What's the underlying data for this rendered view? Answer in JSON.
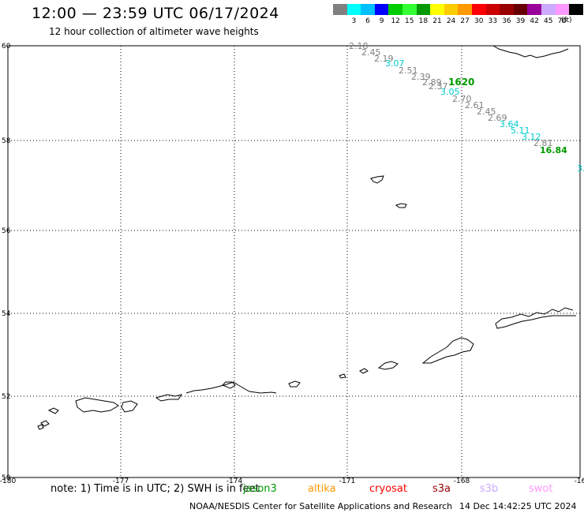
{
  "header": {
    "title": "12:00 — 23:59 UTC 06/17/2024",
    "subtitle": "12 hour collection of altimeter wave heights"
  },
  "legend": {
    "items": [
      {
        "label": "",
        "color": "#808080"
      },
      {
        "label": "3",
        "color": "#00ffff"
      },
      {
        "label": "6",
        "color": "#00bfff"
      },
      {
        "label": "9",
        "color": "#0000ff"
      },
      {
        "label": "12",
        "color": "#00cc00"
      },
      {
        "label": "15",
        "color": "#33ff33"
      },
      {
        "label": "18",
        "color": "#009900"
      },
      {
        "label": "21",
        "color": "#ffff00"
      },
      {
        "label": "24",
        "color": "#ffcc00"
      },
      {
        "label": "27",
        "color": "#ff9900"
      },
      {
        "label": "30",
        "color": "#ff0000"
      },
      {
        "label": "33",
        "color": "#cc0000"
      },
      {
        "label": "36",
        "color": "#990000"
      },
      {
        "label": "39",
        "color": "#660000"
      },
      {
        "label": "42",
        "color": "#990099"
      },
      {
        "label": "45",
        "color": "#ccaaff"
      },
      {
        "label": "70",
        "color": "#ff99ff"
      },
      {
        "label": "",
        "color": "#000000"
      }
    ],
    "unit": "(ft)"
  },
  "map": {
    "lat_ticks": [
      "60",
      "58",
      "56",
      "54",
      "52",
      "50"
    ],
    "lon_ticks": [
      "-180",
      "-177",
      "-174",
      "-171",
      "-168",
      "-16"
    ],
    "lat_range": [
      50,
      60
    ],
    "lon_range": [
      -180,
      -165
    ],
    "track_points": [
      {
        "text": "2.18",
        "color": "#808080"
      },
      {
        "text": "2.45",
        "color": "#808080"
      },
      {
        "text": "2.19",
        "color": "#808080"
      },
      {
        "text": "3.07",
        "color": "#00cccc"
      },
      {
        "text": "2.51",
        "color": "#808080"
      },
      {
        "text": "2.39",
        "color": "#808080"
      },
      {
        "text": "2.89",
        "color": "#808080"
      },
      {
        "text": "2.37",
        "color": "#808080"
      },
      {
        "text": "1620",
        "color": "#009900"
      },
      {
        "text": "3.05",
        "color": "#00cccc"
      },
      {
        "text": "2.70",
        "color": "#808080"
      },
      {
        "text": "2.61",
        "color": "#808080"
      },
      {
        "text": "2.45",
        "color": "#808080"
      },
      {
        "text": "2.69",
        "color": "#808080"
      },
      {
        "text": "3.64",
        "color": "#00cccc"
      },
      {
        "text": "5.11",
        "color": "#00cccc"
      },
      {
        "text": "3.12",
        "color": "#00cccc"
      },
      {
        "text": "2.81",
        "color": "#808080"
      },
      {
        "text": "16.84",
        "color": "#009900"
      },
      {
        "text": "3.",
        "color": "#00cccc"
      }
    ]
  },
  "footer": {
    "note": "note: 1) Time is in UTC; 2) SWH is in feet",
    "satellites": [
      {
        "name": "jason3",
        "color": "#009900"
      },
      {
        "name": "altika",
        "color": "#ff9900"
      },
      {
        "name": "cryosat",
        "color": "#ff0000"
      },
      {
        "name": "s3a",
        "color": "#990000"
      },
      {
        "name": "s3b",
        "color": "#ccaaff"
      },
      {
        "name": "swot",
        "color": "#ff99ff"
      }
    ],
    "credit": "NOAA/NESDIS Center for Satellite Applications and Research",
    "timestamp": "14 Dec 14:42:25 UTC 2024"
  }
}
